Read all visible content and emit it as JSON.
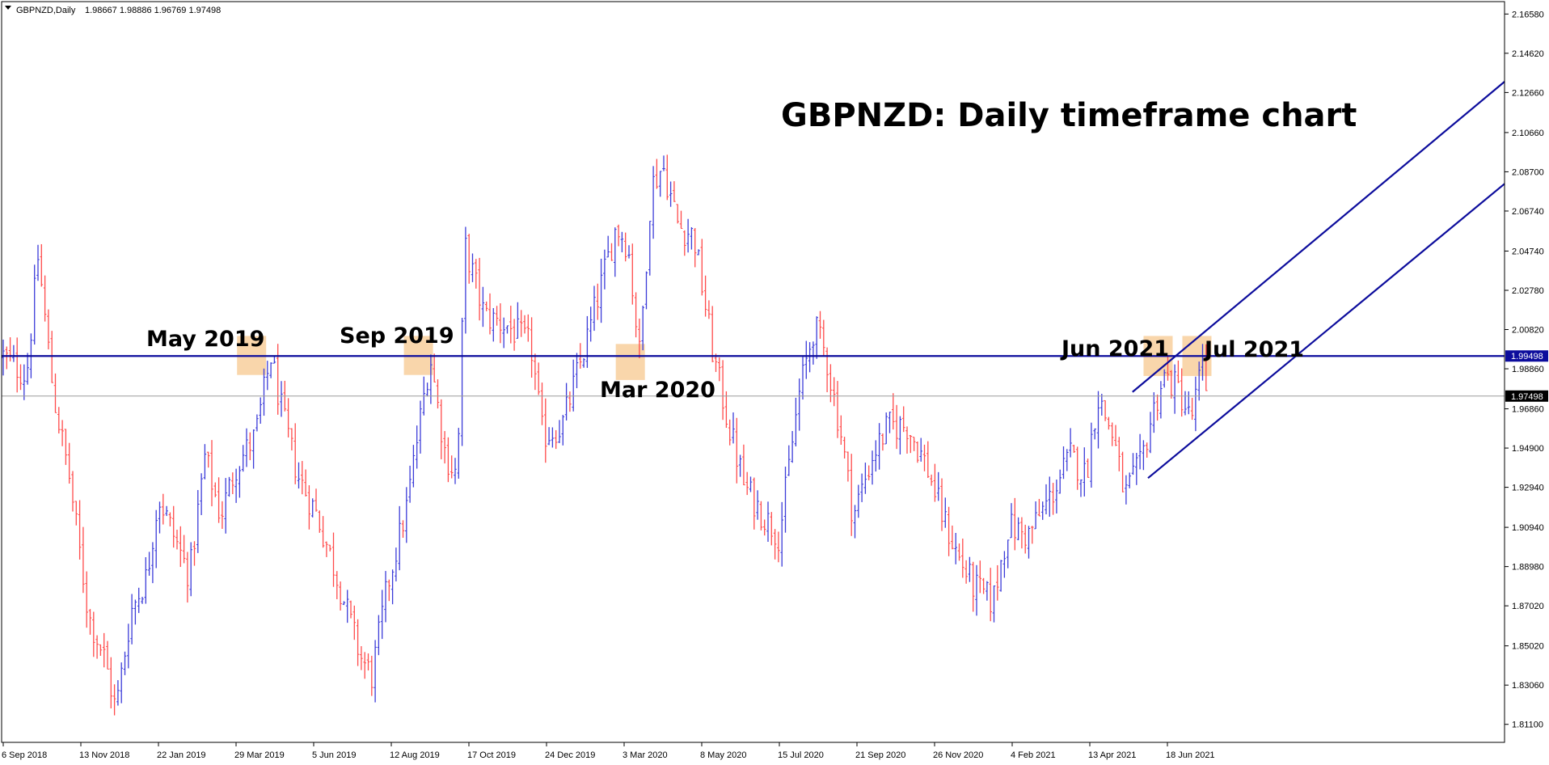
{
  "header": {
    "symbol": "GBPNZD,Daily",
    "ohlc": "1.98667 1.98886 1.96769 1.97498",
    "dropdown_icon": "triangle-down-icon"
  },
  "colors": {
    "bull": "#3b3bd8",
    "bear": "#ff4a4a",
    "trend": "#0c0c9c",
    "zone": "#f8cf9c",
    "grid": "#000000",
    "current_price_line": "#9a9a9a"
  },
  "chart_data": {
    "type": "candlestick",
    "title": "GBPNZD: Daily timeframe chart",
    "symbol": "GBPNZD",
    "timeframe": "Daily",
    "ylim": [
      1.802,
      2.172
    ],
    "y_ticks": [
      "2.16580",
      "2.14620",
      "2.12660",
      "2.10660",
      "2.08700",
      "2.06740",
      "2.04740",
      "2.02780",
      "2.00820",
      "1.98860",
      "1.96860",
      "1.94900",
      "1.92940",
      "1.90940",
      "1.88980",
      "1.87020",
      "1.85020",
      "1.83060",
      "1.81100"
    ],
    "x_ticks": [
      "6 Sep 2018",
      "13 Nov 2018",
      "22 Jan 2019",
      "29 Mar 2019",
      "5 Jun 2019",
      "12 Aug 2019",
      "17 Oct 2019",
      "24 Dec 2019",
      "3 Mar 2020",
      "8 May 2020",
      "15 Jul 2020",
      "21 Sep 2020",
      "26 Nov 2020",
      "4 Feb 2021",
      "13 Apr 2021",
      "18 Jun 2021"
    ],
    "resistance_level": {
      "value": 1.99498,
      "label": "1.99498"
    },
    "current_price": {
      "value": 1.97498,
      "label": "1.97498"
    },
    "annotations": [
      {
        "text": "May 2019",
        "date_index": 3.3
      },
      {
        "text": "Sep 2019",
        "date_index": 5.5
      },
      {
        "text": "Mar 2020",
        "date_index": 8.1
      },
      {
        "text": "Jun 2021",
        "date_index": 14.8
      },
      {
        "text": "Jul 2021",
        "date_index": 15.4
      }
    ],
    "highlight_zones": [
      {
        "date_index": 3.2,
        "price_low": 1.9855,
        "price_high": 2.005
      },
      {
        "date_index": 5.35,
        "price_low": 1.9855,
        "price_high": 2.005
      },
      {
        "date_index": 8.08,
        "price_low": 1.983,
        "price_high": 2.001
      },
      {
        "date_index": 14.88,
        "price_low": 1.985,
        "price_high": 2.005
      },
      {
        "date_index": 15.38,
        "price_low": 1.985,
        "price_high": 2.005
      }
    ],
    "channel": {
      "upper": [
        {
          "date_index": 14.55,
          "price": 1.977
        },
        {
          "date_index": 19.5,
          "price": 2.132
        }
      ],
      "lower": [
        {
          "date_index": 14.75,
          "price": 1.934
        },
        {
          "date_index": 19.5,
          "price": 2.081
        }
      ]
    },
    "price_path": [
      {
        "date_index": 0.0,
        "price": 1.995
      },
      {
        "date_index": 0.3,
        "price": 1.985
      },
      {
        "date_index": 0.45,
        "price": 2.045
      },
      {
        "date_index": 0.65,
        "price": 1.975
      },
      {
        "date_index": 0.85,
        "price": 1.935
      },
      {
        "date_index": 1.1,
        "price": 1.865
      },
      {
        "date_index": 1.3,
        "price": 1.845
      },
      {
        "date_index": 1.45,
        "price": 1.818
      },
      {
        "date_index": 1.65,
        "price": 1.868
      },
      {
        "date_index": 1.85,
        "price": 1.885
      },
      {
        "date_index": 2.0,
        "price": 1.925
      },
      {
        "date_index": 2.2,
        "price": 1.905
      },
      {
        "date_index": 2.4,
        "price": 1.885
      },
      {
        "date_index": 2.6,
        "price": 1.945
      },
      {
        "date_index": 2.8,
        "price": 1.915
      },
      {
        "date_index": 3.0,
        "price": 1.94
      },
      {
        "date_index": 3.25,
        "price": 1.955
      },
      {
        "date_index": 3.45,
        "price": 1.995
      },
      {
        "date_index": 3.6,
        "price": 1.965
      },
      {
        "date_index": 3.8,
        "price": 1.935
      },
      {
        "date_index": 4.05,
        "price": 1.915
      },
      {
        "date_index": 4.3,
        "price": 1.885
      },
      {
        "date_index": 4.6,
        "price": 1.845
      },
      {
        "date_index": 4.75,
        "price": 1.835
      },
      {
        "date_index": 4.95,
        "price": 1.88
      },
      {
        "date_index": 5.2,
        "price": 1.92
      },
      {
        "date_index": 5.5,
        "price": 1.995
      },
      {
        "date_index": 5.7,
        "price": 1.945
      },
      {
        "date_index": 5.85,
        "price": 1.935
      },
      {
        "date_index": 5.95,
        "price": 2.05
      },
      {
        "date_index": 6.2,
        "price": 2.015
      },
      {
        "date_index": 6.5,
        "price": 2.01
      },
      {
        "date_index": 6.8,
        "price": 2.0
      },
      {
        "date_index": 6.95,
        "price": 1.955
      },
      {
        "date_index": 7.2,
        "price": 1.96
      },
      {
        "date_index": 7.5,
        "price": 2.0
      },
      {
        "date_index": 7.7,
        "price": 2.03
      },
      {
        "date_index": 7.9,
        "price": 2.06
      },
      {
        "date_index": 8.05,
        "price": 2.05
      },
      {
        "date_index": 8.2,
        "price": 1.995
      },
      {
        "date_index": 8.35,
        "price": 2.08
      },
      {
        "date_index": 8.5,
        "price": 2.09
      },
      {
        "date_index": 8.7,
        "price": 2.06
      },
      {
        "date_index": 8.9,
        "price": 2.055
      },
      {
        "date_index": 9.15,
        "price": 1.995
      },
      {
        "date_index": 9.35,
        "price": 1.96
      },
      {
        "date_index": 9.55,
        "price": 1.93
      },
      {
        "date_index": 9.8,
        "price": 1.915
      },
      {
        "date_index": 10.0,
        "price": 1.905
      },
      {
        "date_index": 10.25,
        "price": 1.975
      },
      {
        "date_index": 10.45,
        "price": 2.01
      },
      {
        "date_index": 10.6,
        "price": 1.995
      },
      {
        "date_index": 10.8,
        "price": 1.955
      },
      {
        "date_index": 10.95,
        "price": 1.915
      },
      {
        "date_index": 11.2,
        "price": 1.945
      },
      {
        "date_index": 11.4,
        "price": 1.96
      },
      {
        "date_index": 11.65,
        "price": 1.96
      },
      {
        "date_index": 11.9,
        "price": 1.94
      },
      {
        "date_index": 12.1,
        "price": 1.915
      },
      {
        "date_index": 12.3,
        "price": 1.895
      },
      {
        "date_index": 12.5,
        "price": 1.88
      },
      {
        "date_index": 12.75,
        "price": 1.872
      },
      {
        "date_index": 12.95,
        "price": 1.91
      },
      {
        "date_index": 13.2,
        "price": 1.905
      },
      {
        "date_index": 13.5,
        "price": 1.925
      },
      {
        "date_index": 13.75,
        "price": 1.945
      },
      {
        "date_index": 13.95,
        "price": 1.935
      },
      {
        "date_index": 14.1,
        "price": 1.975
      },
      {
        "date_index": 14.3,
        "price": 1.955
      },
      {
        "date_index": 14.45,
        "price": 1.925
      },
      {
        "date_index": 14.65,
        "price": 1.94
      },
      {
        "date_index": 14.8,
        "price": 1.965
      },
      {
        "date_index": 14.95,
        "price": 1.985
      },
      {
        "date_index": 15.15,
        "price": 1.978
      },
      {
        "date_index": 15.3,
        "price": 1.962
      },
      {
        "date_index": 15.45,
        "price": 1.99
      },
      {
        "date_index": 15.52,
        "price": 1.975
      }
    ]
  }
}
